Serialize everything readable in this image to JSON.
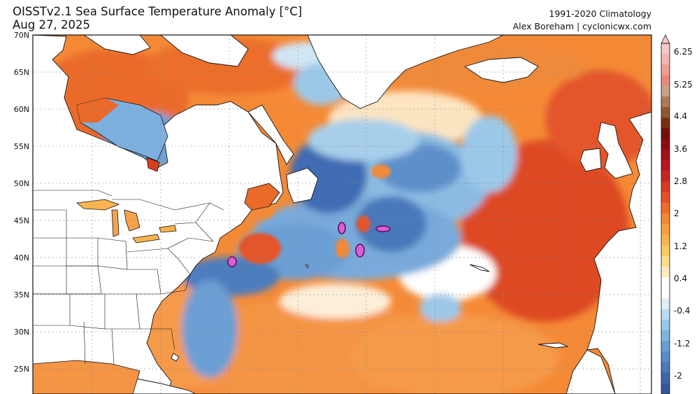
{
  "header": {
    "title": "OISSTv2.1 Sea Surface Temperature Anomaly [°C]",
    "date": "Aug 27, 2025",
    "climatology": "1991-2020 Climatology",
    "credit": "Alex Boreham | cyclonicwx.com"
  },
  "map": {
    "lat_labels": [
      "70N",
      "65N",
      "60N",
      "55N",
      "50N",
      "45N",
      "40N",
      "35N",
      "30N",
      "25N"
    ],
    "lat_values": [
      70,
      65,
      60,
      55,
      50,
      45,
      40,
      35,
      30,
      25
    ],
    "colors": {
      "land": "#ffffff",
      "coast": "#111111",
      "gridline": "#888888",
      "warm_strong": "#d7401f",
      "warm": "#ef7a2e",
      "warm_light": "#f9ab5c",
      "neutral": "#ffffff",
      "cool_light": "#a9d3ec",
      "cool": "#6aa3d6",
      "cool_strong": "#2f5ea8",
      "extreme_cold": "#d95fd2"
    }
  },
  "colorbar": {
    "labels": [
      "6.25",
      "5.25",
      "4.4",
      "3.6",
      "2.8",
      "2",
      "1.2",
      "0.4",
      "-0.4",
      "-1.2",
      "-2"
    ],
    "bins": [
      "#f4c8c8",
      "#f1b7b0",
      "#ee9e92",
      "#e98a79",
      "#c8a28a",
      "#ad7a5a",
      "#8f5634",
      "#7a2f14",
      "#701008",
      "#8a0d10",
      "#a01218",
      "#b8161c",
      "#c9261f",
      "#d93a22",
      "#e7512a",
      "#ef6c2d",
      "#f58836",
      "#f7a040",
      "#f9b44f",
      "#fbc864",
      "#fddc8a",
      "#feeebd",
      "#ffffff",
      "#ffffff",
      "#dff0f8",
      "#b9def2",
      "#96caea",
      "#7db5e0",
      "#679fd4",
      "#588bc7",
      "#4b78b8",
      "#3f66a9",
      "#34579c"
    ]
  }
}
